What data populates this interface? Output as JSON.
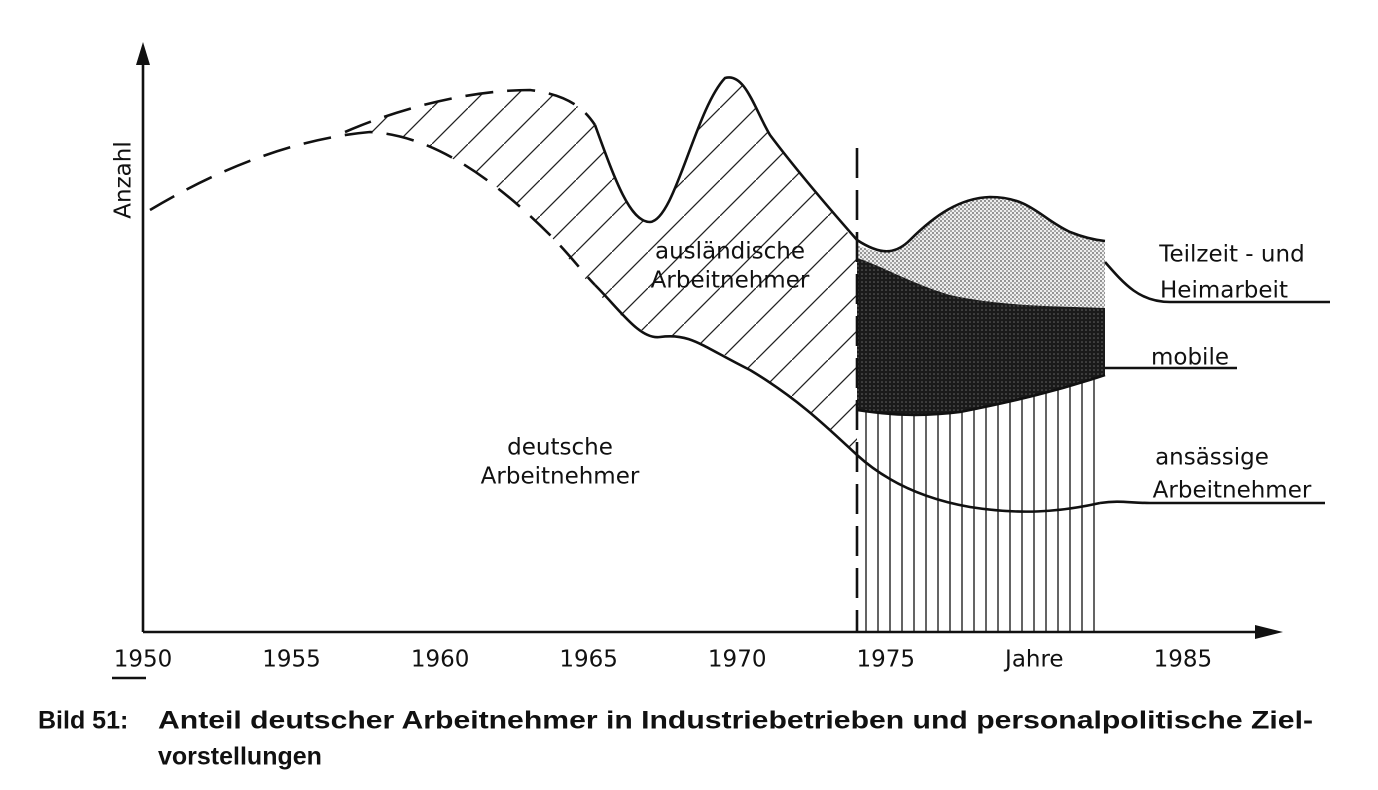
{
  "chart_data": {
    "type": "schematic",
    "y_label": "Anzahl",
    "xlim": [
      1950,
      1988
    ],
    "xticks": [
      1950,
      1955,
      1960,
      1965,
      1970,
      1975,
      {
        "value": 1980,
        "label": "Jahre"
      },
      1985
    ],
    "annotations": {
      "auslaendische": [
        "ausländische",
        "Arbeitnehmer"
      ],
      "deutsche": [
        "deutsche",
        "Arbeitnehmer"
      ],
      "teilzeit": [
        "Teilzeit - und",
        "Heimarbeit"
      ],
      "mobile": "mobile",
      "ansaessige": [
        "ansässige",
        "Arbeitnehmer"
      ]
    },
    "caption": {
      "label": "Bild 51:",
      "lines": [
        "Anteil deutscher Arbeitnehmer in Industriebetrieben und personalpolitische Ziel-",
        "vorstellungen"
      ]
    }
  }
}
